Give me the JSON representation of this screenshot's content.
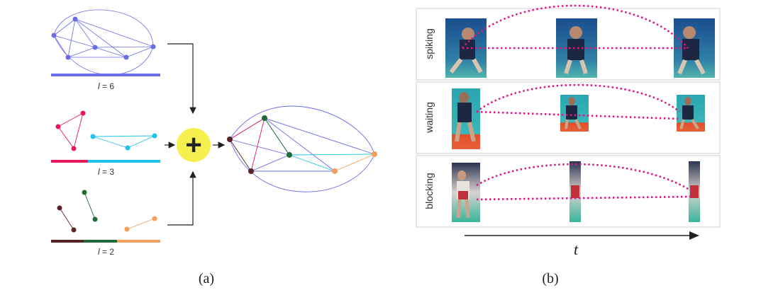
{
  "panel_a": {
    "caption": "(a)",
    "levels": [
      {
        "label": "l = 6",
        "var": "l",
        "rest": " = 6"
      },
      {
        "label": "l = 3",
        "var": "l",
        "rest": " = 3"
      },
      {
        "label": "l = 2",
        "var": "l",
        "rest": " = 2"
      }
    ],
    "plus_symbol": "+",
    "colors": {
      "blue": "#6a6ce6",
      "pink": "#e8175d",
      "cyan": "#1fc3e6",
      "dark_brown": "#5a2327",
      "dark_green": "#1f6a37",
      "orange": "#f5a05a",
      "plus_bg": "#f6f04e"
    }
  },
  "panel_b": {
    "caption": "(b)",
    "rows": [
      {
        "label": "spiking"
      },
      {
        "label": "waiting"
      },
      {
        "label": "blocking"
      }
    ],
    "axis_label": "t",
    "link_color": "#d81b83"
  }
}
